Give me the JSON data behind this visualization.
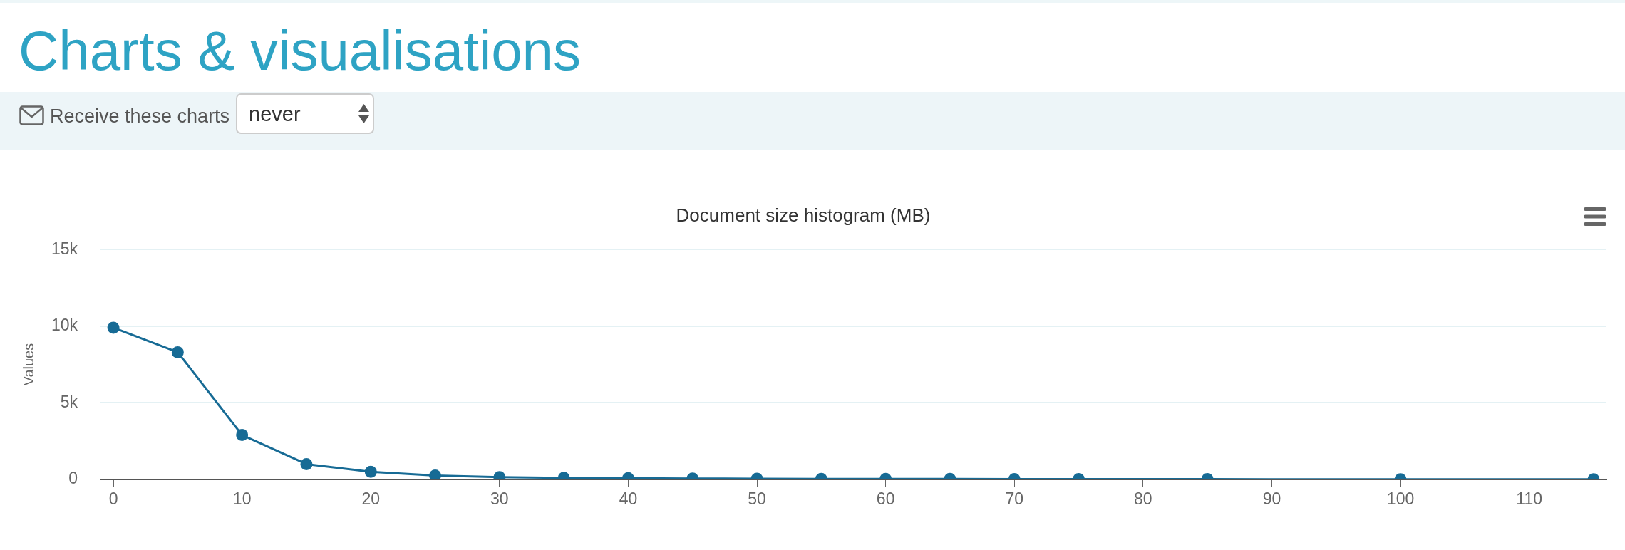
{
  "chart_data": {
    "type": "line",
    "title": "Document size histogram (MB)",
    "ylabel": "Values",
    "annotations": [
      "Charts & visualisations",
      "Receive these charts",
      "never"
    ],
    "x": [
      0,
      5,
      10,
      15,
      20,
      25,
      30,
      35,
      40,
      45,
      50,
      55,
      60,
      65,
      70,
      75,
      85,
      100,
      115
    ],
    "values": [
      9900,
      8300,
      2900,
      1000,
      500,
      250,
      150,
      100,
      80,
      60,
      50,
      40,
      30,
      30,
      20,
      20,
      20,
      10,
      10
    ],
    "color": "#176b95",
    "xlim": [
      -1,
      116
    ],
    "xticks": [
      0,
      10,
      20,
      30,
      40,
      50,
      60,
      70,
      80,
      90,
      100,
      110
    ],
    "ylim": [
      0,
      15000
    ],
    "yticks": [
      0,
      {
        "value": 5000,
        "label": "5k"
      },
      {
        "value": 10000,
        "label": "10k"
      },
      {
        "value": 15000,
        "label": "15k"
      }
    ],
    "grid": "y",
    "marker": "circle",
    "line_style": "solid"
  }
}
